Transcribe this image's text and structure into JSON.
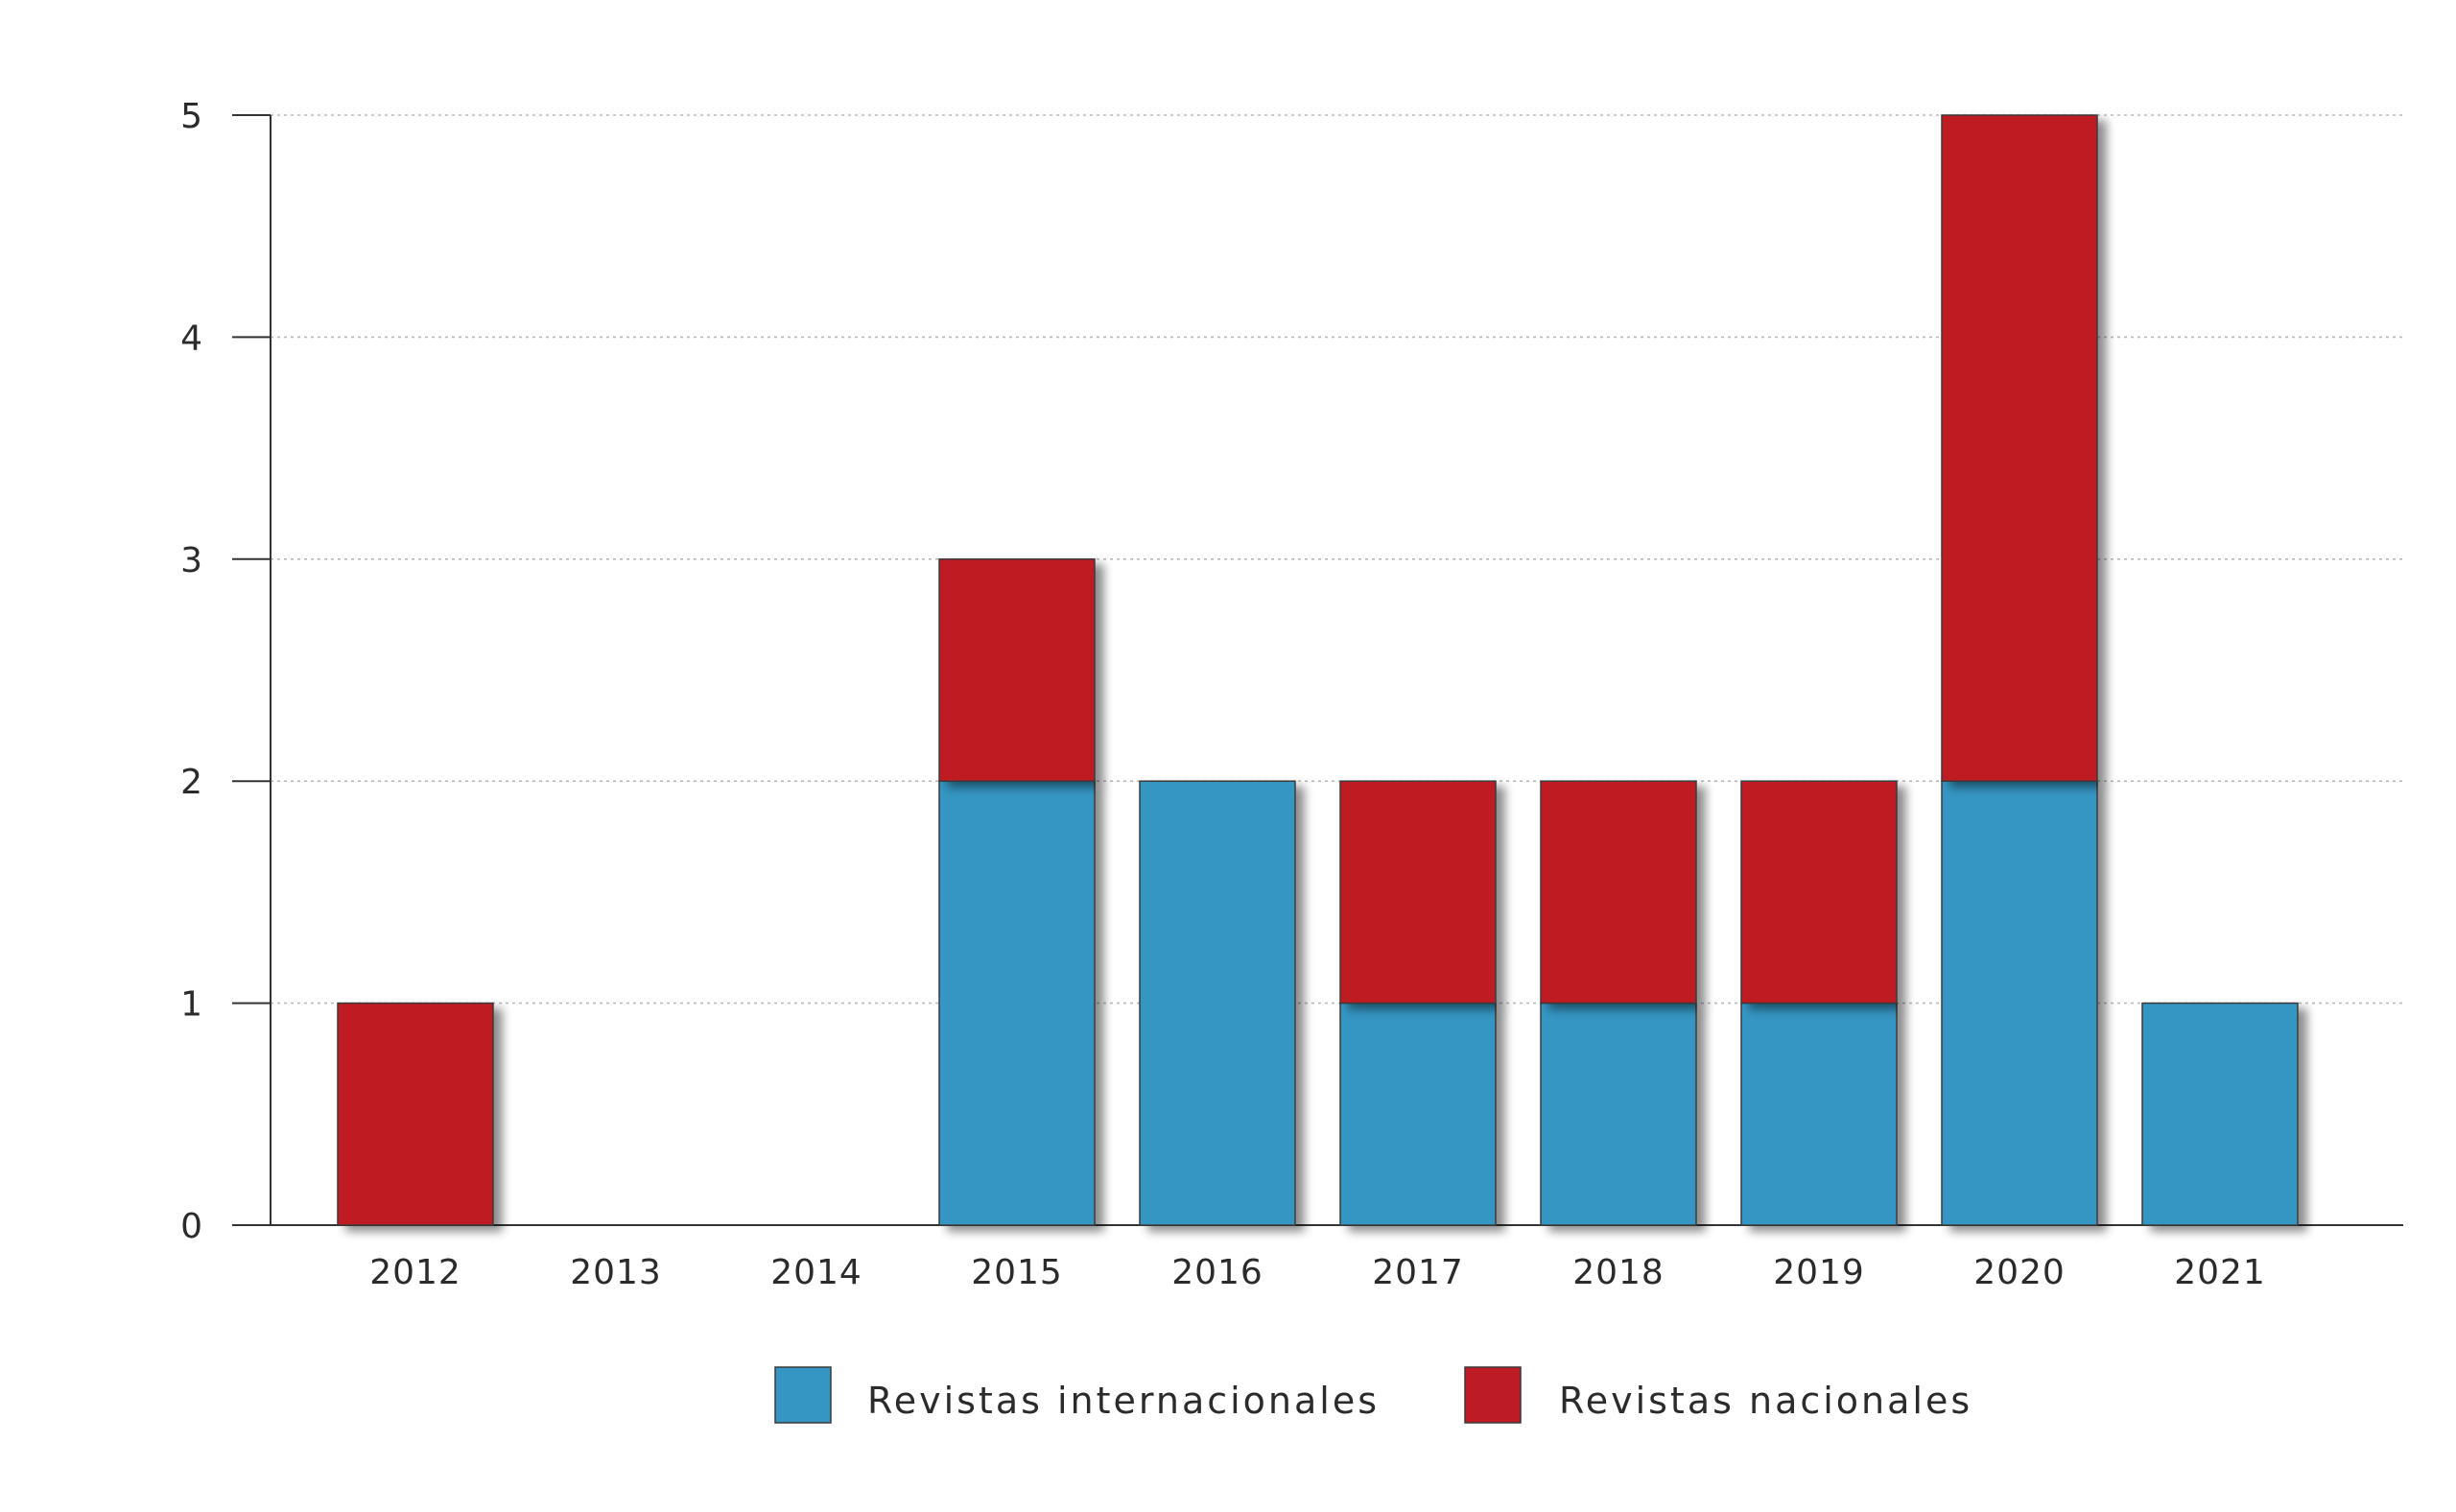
{
  "chart_data": {
    "type": "bar",
    "stacked": true,
    "title": "",
    "xlabel": "",
    "ylabel": "",
    "categories": [
      "2012",
      "2013",
      "2014",
      "2015",
      "2016",
      "2017",
      "2018",
      "2019",
      "2020",
      "2021"
    ],
    "series": [
      {
        "name": "Revistas internacionales",
        "color": "#3596c3",
        "values": [
          0,
          0,
          0,
          2,
          2,
          1,
          1,
          1,
          2,
          1
        ]
      },
      {
        "name": "Revistas nacionales",
        "color": "#be1c24",
        "values": [
          1,
          0,
          0,
          1,
          0,
          1,
          1,
          1,
          3,
          0
        ]
      }
    ],
    "ylim": [
      0,
      5
    ],
    "yticks": [
      0,
      1,
      2,
      3,
      4,
      5
    ],
    "grid": true,
    "legend_position": "bottom-center"
  }
}
